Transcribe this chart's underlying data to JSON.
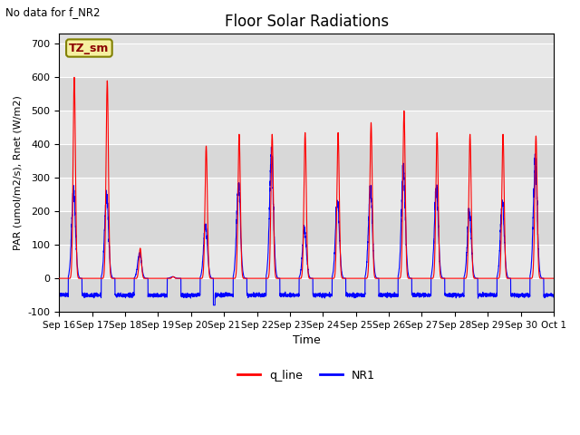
{
  "title": "Floor Solar Radiations",
  "subtitle": "No data for f_NR2",
  "xlabel": "Time",
  "ylabel": "PAR (umol/m2/s), Rnet (W/m2)",
  "ylim": [
    -100,
    730
  ],
  "yticks": [
    -100,
    0,
    100,
    200,
    300,
    400,
    500,
    600,
    700
  ],
  "xtick_labels": [
    "Sep 16",
    "Sep 17",
    "Sep 18",
    "Sep 19",
    "Sep 20",
    "Sep 21",
    "Sep 22",
    "Sep 23",
    "Sep 24",
    "Sep 25",
    "Sep 26",
    "Sep 27",
    "Sep 28",
    "Sep 29",
    "Sep 30",
    "Oct 1"
  ],
  "legend_entries": [
    "q_line",
    "NR1"
  ],
  "line_colors": {
    "q_line": "red",
    "NR1": "blue"
  },
  "annotation_text": "TZ_sm",
  "background_color": "#e0e0e0",
  "fig_background": "#ffffff",
  "nr1_negative": -50,
  "q_peaks": [
    600,
    590,
    90,
    5,
    395,
    430,
    430,
    435,
    435,
    465,
    500,
    435,
    430,
    430,
    425
  ],
  "nr1_peaks": [
    260,
    250,
    75,
    5,
    160,
    280,
    370,
    145,
    235,
    270,
    330,
    270,
    200,
    225,
    345
  ]
}
